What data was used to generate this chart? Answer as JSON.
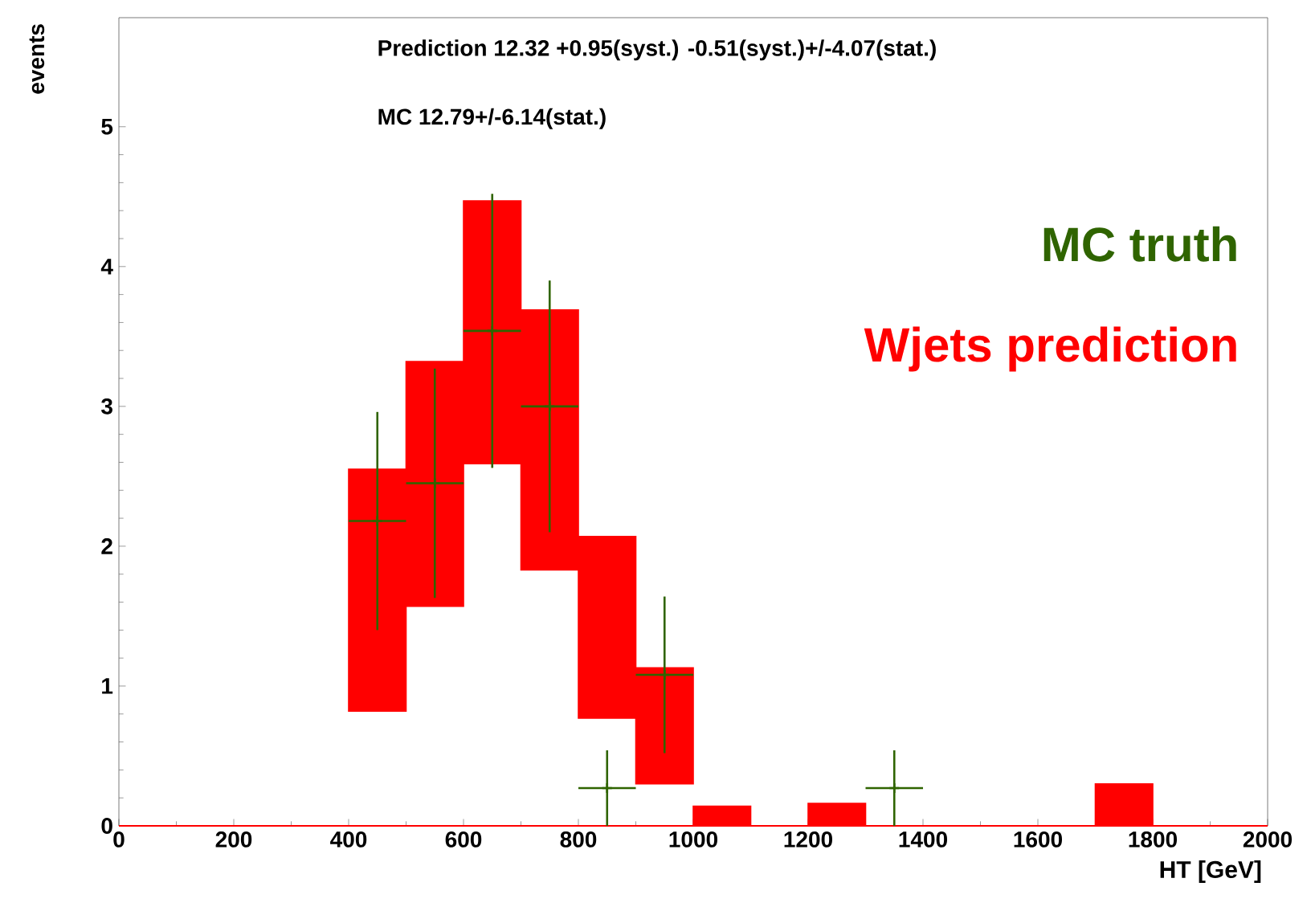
{
  "chart_data": {
    "type": "bar",
    "xlabel": "HT [GeV]",
    "ylabel": "events",
    "annotations": [
      "Prediction  12.32 +0.95(syst.) -0.51(syst.)+/-4.07(stat.)",
      "MC          12.79+/-6.14(stat.)"
    ],
    "xlim": [
      0,
      2000
    ],
    "ylim": [
      0,
      5.78
    ],
    "xticks": [
      0,
      200,
      400,
      600,
      800,
      1000,
      1200,
      1400,
      1600,
      1800,
      2000
    ],
    "yticks": [
      0,
      1,
      2,
      3,
      4,
      5
    ],
    "legend": "top right",
    "series": [
      {
        "type": "line",
        "color": "#ff0000",
        "x": [
          0,
          2000
        ],
        "values": [
          0,
          0
        ]
      },
      {
        "name": "Wjets prediction",
        "color": "#ff0000",
        "x": [
          450,
          550,
          650,
          750,
          850,
          950,
          1050,
          1250,
          1750
        ],
        "base": [
          0.82,
          1.57,
          2.59,
          1.83,
          0.77,
          0.3,
          0,
          0,
          0
        ],
        "values": [
          1.73,
          1.75,
          1.88,
          1.86,
          1.3,
          0.83,
          0.14,
          0.16,
          0.3
        ]
      },
      {
        "name": "MC truth",
        "type": "scatter",
        "color": "#2f6400",
        "x": [
          450,
          550,
          650,
          750,
          850,
          950,
          1350
        ],
        "values": [
          2.18,
          2.45,
          3.54,
          3.0,
          0.27,
          1.08,
          0.27
        ],
        "errors": [
          0.78,
          0.82,
          0.98,
          0.9,
          0.27,
          0.56,
          0.27
        ],
        "xerrors": [
          50,
          50,
          50,
          50,
          50,
          50,
          50
        ]
      }
    ]
  }
}
